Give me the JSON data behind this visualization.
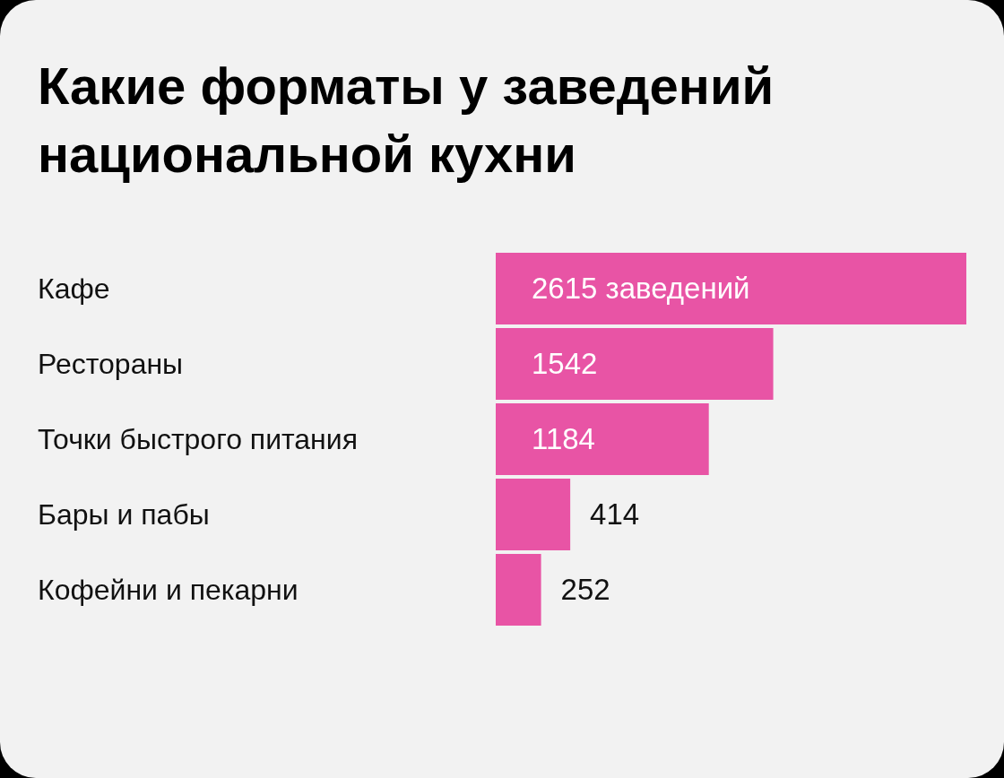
{
  "chart_data": {
    "type": "bar",
    "orientation": "horizontal",
    "title": "Какие форматы у заведений национальной кухни",
    "categories": [
      "Кафе",
      "Рестораны",
      "Точки быстрого питания",
      "Бары и пабы",
      "Кофейни и пекарни"
    ],
    "values": [
      2615,
      1542,
      1184,
      414,
      252
    ],
    "value_labels": [
      "2615 заведений",
      "1542",
      "1184",
      "414",
      "252"
    ],
    "color": "#e854a5",
    "grid": false,
    "legend": false
  }
}
